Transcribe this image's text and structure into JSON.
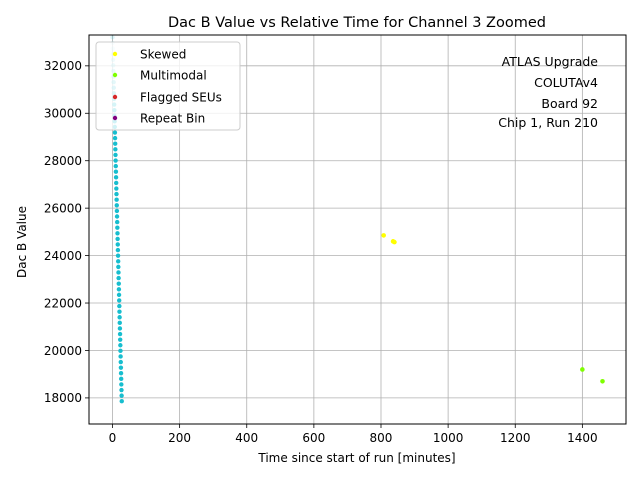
{
  "chart_data": {
    "type": "scatter",
    "title": "Dac B Value vs Relative Time for Channel 3 Zoomed",
    "xlabel": "Time since start of run [minutes]",
    "ylabel": "Dac B Value",
    "xlim": [
      -70,
      1530
    ],
    "ylim": [
      16900,
      33300
    ],
    "xticks": [
      0,
      200,
      400,
      600,
      800,
      1000,
      1200,
      1400
    ],
    "yticks": [
      18000,
      20000,
      22000,
      24000,
      26000,
      28000,
      30000,
      32000
    ],
    "xtick_labels": [
      "0",
      "200",
      "400",
      "600",
      "800",
      "1000",
      "1200",
      "1400"
    ],
    "ytick_labels": [
      "18000",
      "20000",
      "22000",
      "24000",
      "26000",
      "28000",
      "30000",
      "32000"
    ],
    "grid": true,
    "legend_position": "top-left",
    "annotation": [
      "ATLAS Upgrade",
      "COLUTAv4",
      "Board 92",
      "Chip 1, Run 210"
    ],
    "main_color": "#17becf",
    "main_trace": {
      "x_start": 0,
      "x_end": 28,
      "y_start": 33200,
      "y_end": 17650,
      "description_color": "cyan"
    },
    "series": [
      {
        "name": "Skewed",
        "color": "#ffff00",
        "points": [
          [
            808,
            24850
          ],
          [
            836,
            24600
          ],
          [
            840,
            24570
          ]
        ]
      },
      {
        "name": "Multimodal",
        "color": "#7fff00",
        "points": [
          [
            1400,
            19200
          ],
          [
            1460,
            18700
          ]
        ]
      },
      {
        "name": "Flagged SEUs",
        "color": "#d62728",
        "points": []
      },
      {
        "name": "Repeat Bin",
        "color": "#800080",
        "points": []
      }
    ]
  }
}
